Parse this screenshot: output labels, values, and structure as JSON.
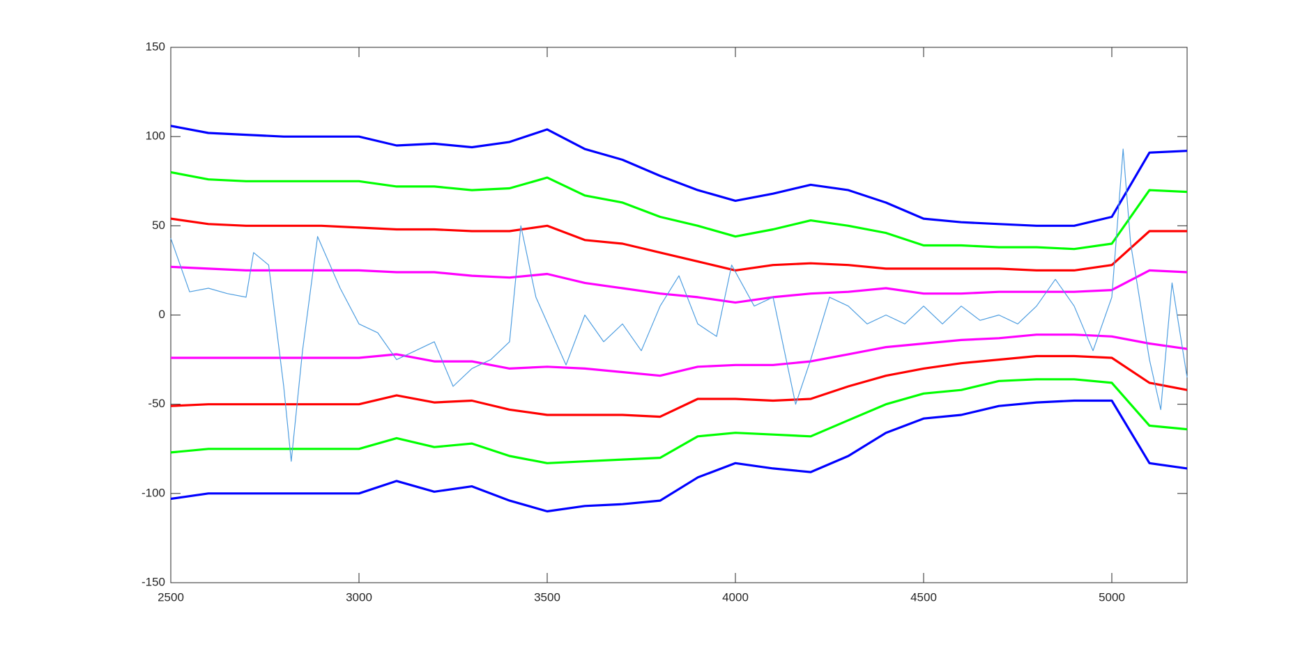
{
  "chart_data": {
    "type": "line",
    "x": [
      2500,
      2600,
      2700,
      2800,
      2900,
      3000,
      3100,
      3200,
      3300,
      3400,
      3500,
      3600,
      3700,
      3800,
      3900,
      4000,
      4100,
      4200,
      4300,
      4400,
      4500,
      4600,
      4700,
      4800,
      4900,
      5000,
      5100,
      5200
    ],
    "xlim": [
      2500,
      5200
    ],
    "xticks": [
      2500,
      3000,
      3500,
      4000,
      4500,
      5000
    ],
    "ylim": [
      -150,
      150
    ],
    "yticks": [
      -150,
      -100,
      -50,
      0,
      50,
      100,
      150
    ],
    "grid": false,
    "series": [
      {
        "color": "#0000ff",
        "values": [
          106,
          102,
          101,
          100,
          100,
          100,
          95,
          96,
          94,
          97,
          104,
          93,
          87,
          78,
          70,
          64,
          68,
          73,
          70,
          63,
          54,
          52,
          51,
          50,
          50,
          55,
          91,
          92
        ]
      },
      {
        "color": "#00ff00",
        "values": [
          80,
          76,
          75,
          75,
          75,
          75,
          72,
          72,
          70,
          71,
          77,
          67,
          63,
          55,
          50,
          44,
          48,
          53,
          50,
          46,
          39,
          39,
          38,
          38,
          37,
          40,
          70,
          69
        ]
      },
      {
        "color": "#ff0000",
        "values": [
          54,
          51,
          50,
          50,
          50,
          49,
          48,
          48,
          47,
          47,
          50,
          42,
          40,
          35,
          30,
          25,
          28,
          29,
          28,
          26,
          26,
          26,
          26,
          25,
          25,
          28,
          47,
          47
        ]
      },
      {
        "color": "#ff00ff",
        "values": [
          27,
          26,
          25,
          25,
          25,
          25,
          24,
          24,
          22,
          21,
          23,
          18,
          15,
          12,
          10,
          7,
          10,
          12,
          13,
          15,
          12,
          12,
          13,
          13,
          13,
          14,
          25,
          24
        ]
      },
      {
        "color": "#ff00ff",
        "values": [
          -24,
          -24,
          -24,
          -24,
          -24,
          -24,
          -22,
          -26,
          -26,
          -30,
          -29,
          -30,
          -32,
          -34,
          -29,
          -28,
          -28,
          -26,
          -22,
          -18,
          -16,
          -14,
          -13,
          -11,
          -11,
          -12,
          -16,
          -19
        ]
      },
      {
        "color": "#ff0000",
        "values": [
          -51,
          -50,
          -50,
          -50,
          -50,
          -50,
          -45,
          -49,
          -48,
          -53,
          -56,
          -56,
          -56,
          -57,
          -47,
          -47,
          -48,
          -47,
          -40,
          -34,
          -30,
          -27,
          -25,
          -23,
          -23,
          -24,
          -38,
          -42
        ]
      },
      {
        "color": "#00ff00",
        "values": [
          -77,
          -75,
          -75,
          -75,
          -75,
          -75,
          -69,
          -74,
          -72,
          -79,
          -83,
          -82,
          -81,
          -80,
          -68,
          -66,
          -67,
          -68,
          -59,
          -50,
          -44,
          -42,
          -37,
          -36,
          -36,
          -38,
          -62,
          -64
        ]
      },
      {
        "color": "#0000ff",
        "values": [
          -103,
          -100,
          -100,
          -100,
          -100,
          -100,
          -93,
          -99,
          -96,
          -104,
          -110,
          -107,
          -106,
          -104,
          -91,
          -83,
          -86,
          -88,
          -79,
          -66,
          -58,
          -56,
          -51,
          -49,
          -48,
          -48,
          -83,
          -86
        ]
      },
      {
        "color": "#4d9de0",
        "x": [
          2500,
          2550,
          2600,
          2650,
          2700,
          2720,
          2760,
          2800,
          2820,
          2850,
          2890,
          2950,
          3000,
          3050,
          3100,
          3150,
          3200,
          3250,
          3300,
          3350,
          3400,
          3430,
          3470,
          3550,
          3600,
          3650,
          3700,
          3750,
          3800,
          3850,
          3900,
          3950,
          3990,
          4050,
          4100,
          4160,
          4200,
          4250,
          4300,
          4350,
          4400,
          4450,
          4500,
          4550,
          4600,
          4650,
          4700,
          4750,
          4800,
          4850,
          4900,
          4950,
          5000,
          5030,
          5050,
          5100,
          5130,
          5160,
          5200
        ],
        "values": [
          43,
          13,
          15,
          12,
          10,
          35,
          28,
          -40,
          -82,
          -20,
          44,
          15,
          -5,
          -10,
          -25,
          -20,
          -15,
          -40,
          -30,
          -25,
          -15,
          50,
          10,
          -28,
          0,
          -15,
          -5,
          -20,
          5,
          22,
          -5,
          -12,
          28,
          5,
          10,
          -50,
          -25,
          10,
          5,
          -5,
          0,
          -5,
          5,
          -5,
          5,
          -3,
          0,
          -5,
          5,
          20,
          5,
          -20,
          10,
          93,
          40,
          -25,
          -53,
          18,
          -35
        ]
      }
    ]
  }
}
